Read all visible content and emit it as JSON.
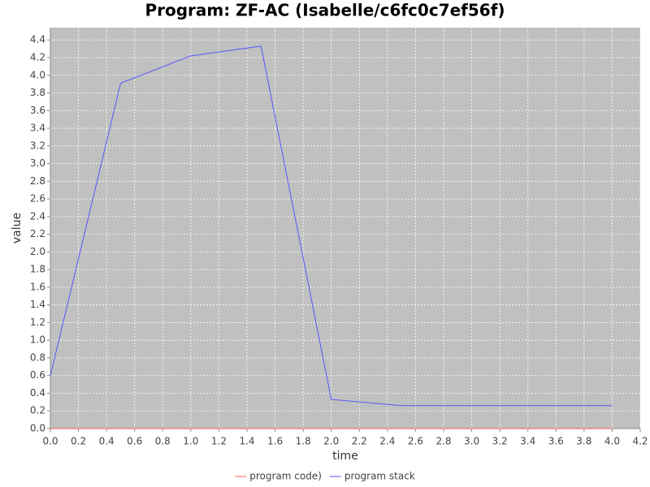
{
  "chart_data": {
    "type": "line",
    "title": "Program: ZF-AC (Isabelle/c6fc0c7ef56f)",
    "x_label": "time",
    "y_label": "value",
    "x": [
      0,
      0.5,
      1,
      1.5,
      2,
      2.5,
      3,
      3.5,
      4
    ],
    "series": [
      {
        "name": "program code)",
        "color": "#ff5555",
        "values": [
          0,
          0,
          0,
          0,
          0,
          0,
          0,
          0,
          0
        ]
      },
      {
        "name": "program stack",
        "color": "#5555ff",
        "values": [
          0.6,
          3.91,
          4.22,
          4.33,
          0.33,
          0.26,
          0.26,
          0.26,
          0.26
        ]
      }
    ],
    "xlim": [
      0,
      4.2
    ],
    "ylim": [
      0,
      4.54
    ],
    "xticks": [
      {
        "value": 0,
        "label": "0.0"
      },
      0.2,
      0.4,
      0.6,
      0.8,
      {
        "value": 1,
        "label": "1.0"
      },
      1.2,
      1.4,
      1.6,
      1.8,
      {
        "value": 2,
        "label": "2.0"
      },
      2.2,
      2.4,
      2.6,
      2.8,
      {
        "value": 3,
        "label": "3.0"
      },
      3.2,
      3.4,
      3.6,
      3.8,
      {
        "value": 4,
        "label": "4.0"
      },
      4.2
    ],
    "yticks": [
      {
        "value": 0,
        "label": "0.0"
      },
      0.2,
      0.4,
      0.6,
      0.8,
      {
        "value": 1,
        "label": "1.0"
      },
      1.2,
      1.4,
      1.6,
      1.8,
      {
        "value": 2,
        "label": "2.0"
      },
      2.2,
      2.4,
      2.6,
      2.8,
      {
        "value": 3,
        "label": "3.0"
      },
      3.2,
      3.4,
      3.6,
      3.8,
      {
        "value": 4,
        "label": "4.0"
      },
      4.2,
      4.4
    ],
    "grid": true,
    "legend": "bottom"
  }
}
